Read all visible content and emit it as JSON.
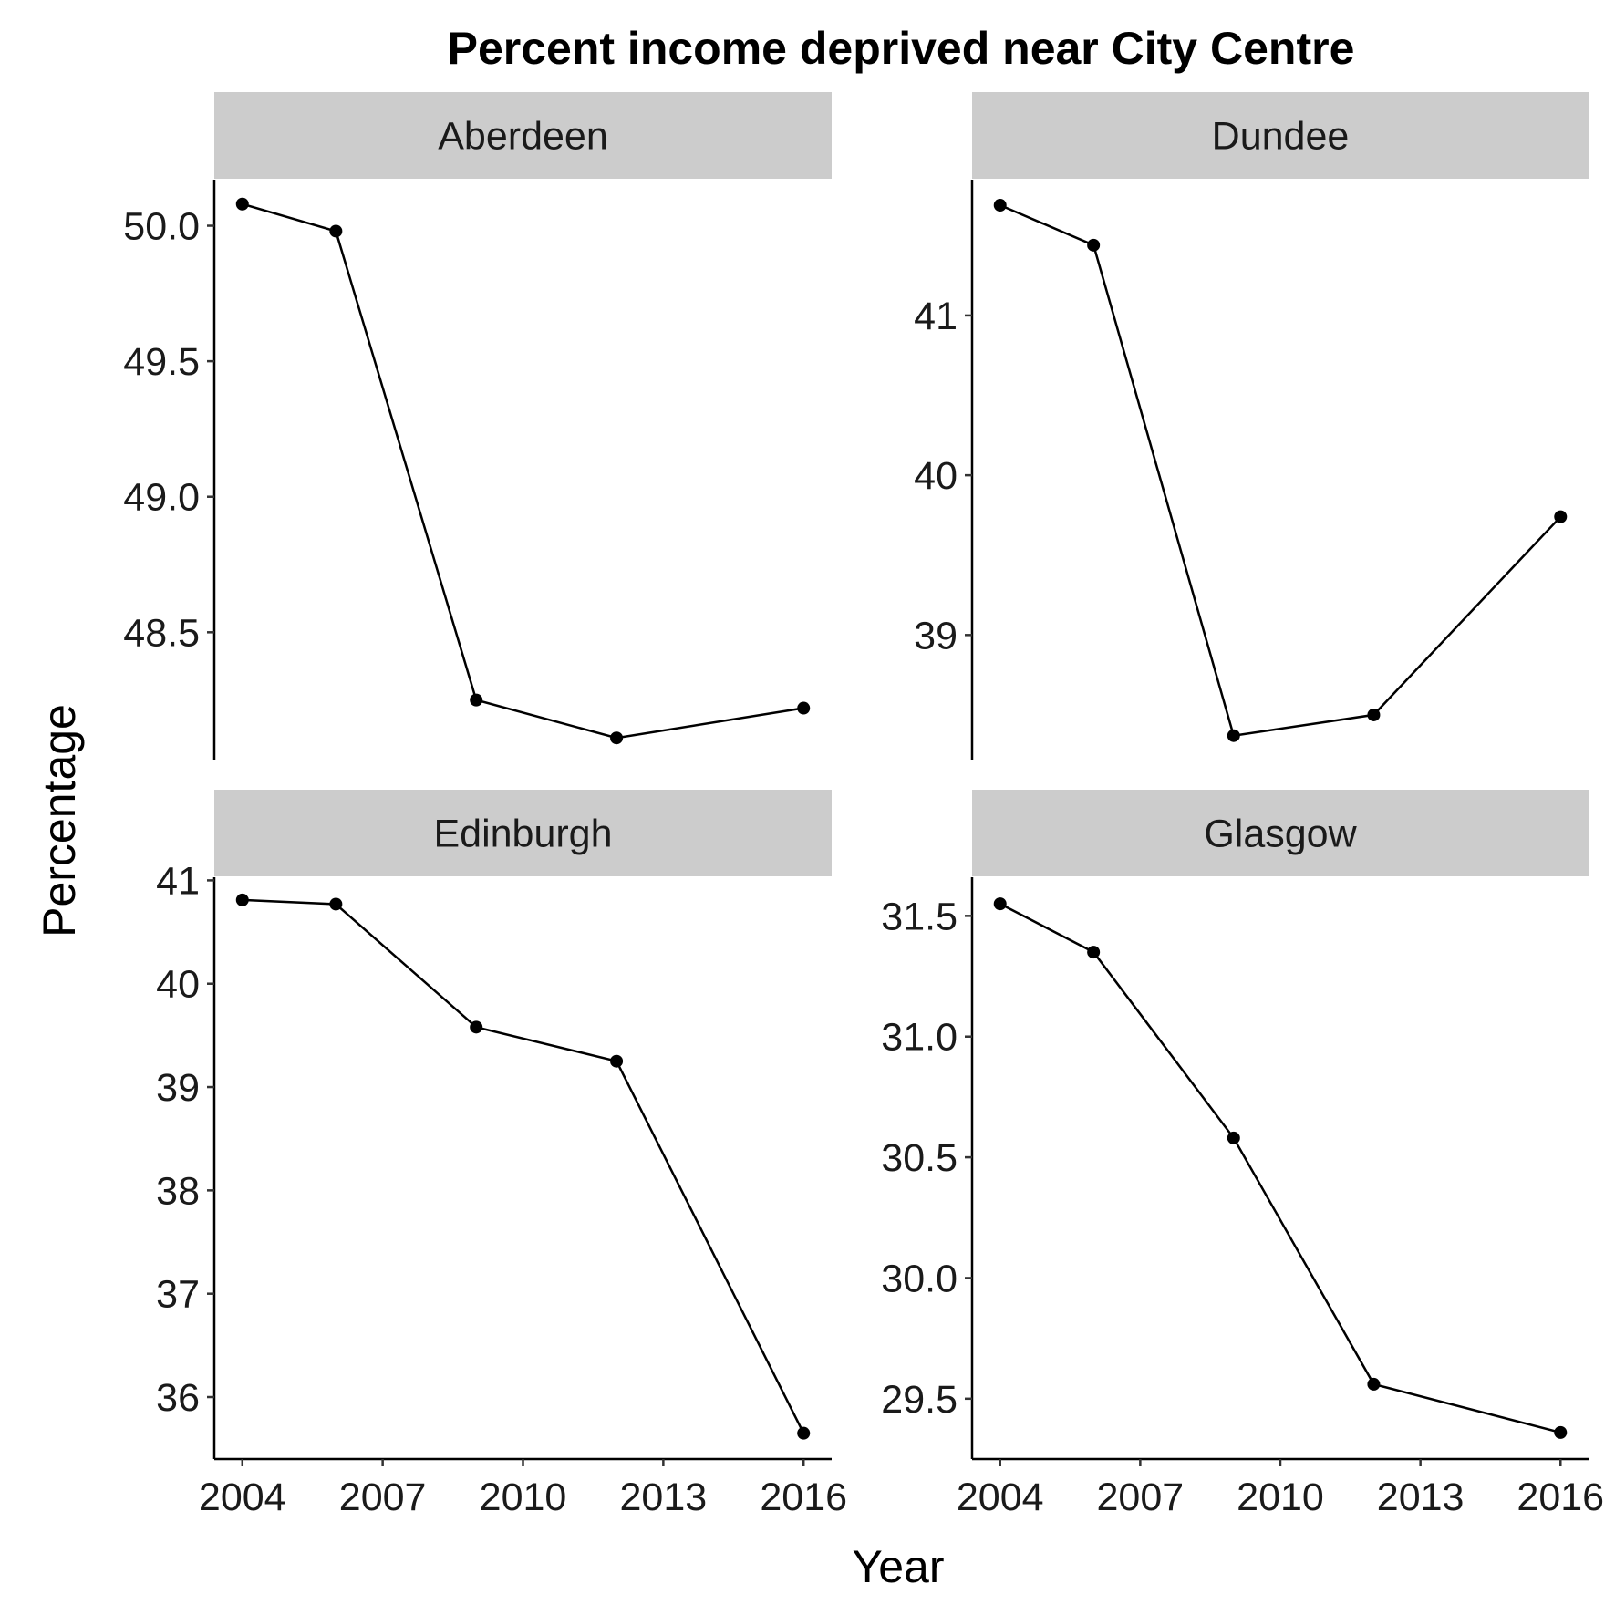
{
  "chart_data": {
    "type": "line",
    "title": "Percent income deprived near City Centre",
    "xlabel": "Year",
    "ylabel": "Percentage",
    "x": [
      2004,
      2006,
      2009,
      2012,
      2016
    ],
    "x_ticks": [
      2004,
      2007,
      2010,
      2013,
      2016
    ],
    "xlim": [
      2003.4,
      2016.6
    ],
    "grid": false,
    "legend": "none",
    "colors": {
      "line": "#000000",
      "strip": "#cccccc",
      "axis": "#000000"
    },
    "panels": [
      {
        "name": "Aberdeen",
        "values": [
          50.08,
          49.98,
          48.25,
          48.11,
          48.22
        ],
        "ylim": [
          48.03,
          50.17
        ],
        "y_ticks": [
          "48.5",
          "49.0",
          "49.5",
          "50.0"
        ]
      },
      {
        "name": "Dundee",
        "values": [
          41.69,
          41.44,
          38.37,
          38.5,
          39.74
        ],
        "ylim": [
          38.22,
          41.85
        ],
        "y_ticks": [
          "39",
          "40",
          "41"
        ]
      },
      {
        "name": "Edinburgh",
        "values": [
          40.81,
          40.77,
          39.58,
          39.25,
          35.65
        ],
        "ylim": [
          35.4,
          41.03
        ],
        "y_ticks": [
          "36",
          "37",
          "38",
          "39",
          "40",
          "41"
        ]
      },
      {
        "name": "Glasgow",
        "values": [
          31.55,
          31.35,
          30.58,
          29.56,
          29.36
        ],
        "ylim": [
          29.25,
          31.66
        ],
        "y_ticks": [
          "29.5",
          "30.0",
          "30.5",
          "31.0",
          "31.5"
        ]
      }
    ]
  }
}
